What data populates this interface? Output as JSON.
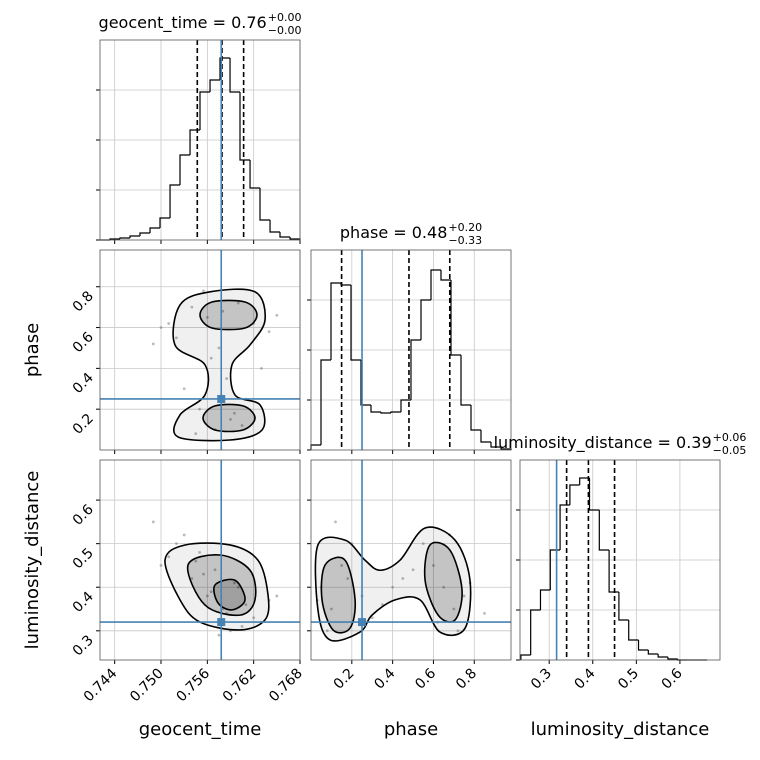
{
  "chart_data": [
    {
      "type": "histogram",
      "title": "geocent_time = 0.76",
      "title_sup": "+0.00",
      "title_sub": "−0.00",
      "bins": [
        0.7421,
        0.7434,
        0.74469,
        0.74599,
        0.74728,
        0.74858,
        0.74987,
        0.75117,
        0.75246,
        0.75376,
        0.75505,
        0.75635,
        0.75764,
        0.75894,
        0.76023,
        0.76153,
        0.76282,
        0.76412,
        0.76541,
        0.76671,
        0.768
      ],
      "values": [
        0,
        1,
        2,
        4,
        7,
        12,
        22,
        55,
        85,
        110,
        148,
        160,
        182,
        148,
        80,
        52,
        20,
        8,
        3,
        1
      ],
      "quantiles": [
        0.7547,
        0.7579,
        0.7607
      ],
      "truth": 0.7578,
      "xlim": [
        0.7421,
        0.768
      ],
      "xticks": [
        0.744,
        {
          "value": 0.75,
          "label": "0.750"
        },
        0.756,
        0.762,
        0.768
      ],
      "ylim": [
        0,
        200
      ],
      "yticks": [
        0,
        50,
        100,
        150
      ],
      "color": "#000000",
      "truth_color": "#4682b4",
      "grid": true
    },
    {
      "type": "scatter",
      "ylabel": "phase",
      "x": [
        0.75,
        0.752,
        0.754,
        0.756,
        0.758,
        0.76,
        0.762,
        0.764,
        0.755,
        0.759,
        0.761,
        0.757,
        0.753,
        0.749,
        0.763,
        0.7565,
        0.7585,
        0.7595,
        0.7545,
        0.751,
        0.765,
        0.7555,
        0.7605,
        0.7575
      ],
      "y": [
        0.6,
        0.55,
        0.7,
        0.65,
        0.68,
        0.72,
        0.62,
        0.58,
        0.2,
        0.15,
        0.25,
        0.1,
        0.3,
        0.52,
        0.4,
        0.45,
        0.35,
        0.18,
        0.08,
        0.62,
        0.66,
        0.78,
        0.12,
        0.5
      ],
      "contours": [
        {
          "x": [
            0.75181,
            0.75246,
            0.75635,
            0.76217,
            0.76347,
            0.76153,
            0.75919,
            0.75958,
            0.76282,
            0.76308,
            0.75893,
            0.7522,
            0.75246,
            0.7557,
            0.7557
          ],
          "y": [
            0.515,
            0.711,
            0.775,
            0.775,
            0.637,
            0.515,
            0.417,
            0.27,
            0.221,
            0.098,
            0.049,
            0.064,
            0.172,
            0.27,
            0.417
          ]
        },
        {
          "x": [
            0.75505,
            0.7566,
            0.76088,
            0.76243,
            0.76088,
            0.7566
          ],
          "y": [
            0.662,
            0.725,
            0.725,
            0.662,
            0.598,
            0.598
          ]
        },
        {
          "x": [
            0.75544,
            0.75699,
            0.76062,
            0.76217,
            0.76062,
            0.75699
          ],
          "y": [
            0.157,
            0.216,
            0.216,
            0.157,
            0.098,
            0.098
          ]
        }
      ],
      "truth_x": 0.7578,
      "truth_y": 0.25,
      "xlim": [
        0.7421,
        0.768
      ],
      "xticks": [
        0.744,
        {
          "value": 0.75,
          "label": "0.750"
        },
        0.756,
        0.762,
        0.768
      ],
      "ylim": [
        0,
        0.98
      ],
      "yticks": [
        0.2,
        0.4,
        0.6,
        0.8
      ],
      "color": "#000000",
      "truth_color": "#4682b4",
      "grid": true
    },
    {
      "type": "histogram",
      "title": "phase = 0.48",
      "title_sup": "+0.20",
      "title_sub": "−0.33",
      "bins": [
        0,
        0.049,
        0.098,
        0.147,
        0.196,
        0.245,
        0.294,
        0.343,
        0.392,
        0.441,
        0.49,
        0.539,
        0.588,
        0.637,
        0.686,
        0.735,
        0.784,
        0.833,
        0.882,
        0.931,
        0.98
      ],
      "values": [
        5,
        90,
        167,
        165,
        90,
        45,
        38,
        37,
        38,
        50,
        110,
        150,
        180,
        170,
        95,
        45,
        20,
        8,
        3,
        1
      ],
      "quantiles": [
        0.15,
        0.48,
        0.68
      ],
      "truth": 0.25,
      "xlim": [
        0,
        0.98
      ],
      "xticks": [
        0.2,
        0.4,
        0.6,
        0.8
      ],
      "ylim": [
        0,
        200
      ],
      "yticks": [
        0,
        50,
        100,
        150
      ],
      "color": "#000000",
      "truth_color": "#4682b4",
      "grid": true
    },
    {
      "type": "scatter",
      "xlabel": "geocent_time",
      "ylabel": "luminosity_distance",
      "x": [
        0.75,
        0.752,
        0.754,
        0.756,
        0.758,
        0.76,
        0.762,
        0.764,
        0.755,
        0.759,
        0.761,
        0.757,
        0.753,
        0.749,
        0.763,
        0.7565,
        0.7585,
        0.7595,
        0.7545,
        0.751,
        0.765,
        0.7555,
        0.7605,
        0.7575
      ],
      "y": [
        0.45,
        0.5,
        0.42,
        0.38,
        0.35,
        0.4,
        0.33,
        0.37,
        0.48,
        0.3,
        0.36,
        0.44,
        0.52,
        0.55,
        0.32,
        0.39,
        0.34,
        0.41,
        0.46,
        0.47,
        0.38,
        0.43,
        0.31,
        0.29
      ],
      "contours": [
        {
          "x": [
            0.75052,
            0.75311,
            0.75894,
            0.76256,
            0.76386,
            0.76347,
            0.76023,
            0.75505,
            0.75246
          ],
          "y": [
            0.462,
            0.497,
            0.497,
            0.462,
            0.382,
            0.325,
            0.302,
            0.32,
            0.371
          ]
        },
        {
          "x": [
            0.7535,
            0.75764,
            0.76153,
            0.76217,
            0.76023,
            0.7557
          ],
          "y": [
            0.451,
            0.474,
            0.439,
            0.371,
            0.336,
            0.359
          ]
        },
        {
          "x": [
            0.75699,
            0.75958,
            0.76088,
            0.75919,
            0.75738
          ],
          "y": [
            0.405,
            0.416,
            0.371,
            0.348,
            0.364
          ]
        }
      ],
      "truth_x": 0.7578,
      "truth_y": 0.32,
      "xlim": [
        0.7421,
        0.768
      ],
      "xticks": [
        0.744,
        {
          "value": 0.75,
          "label": "0.750"
        },
        0.756,
        0.762,
        0.768
      ],
      "ylim": [
        0.233,
        0.692
      ],
      "yticks": [
        0.3,
        0.4,
        0.5,
        0.6
      ],
      "color": "#000000",
      "truth_color": "#4682b4",
      "grid": true
    },
    {
      "type": "scatter",
      "xlabel": "phase",
      "x": [
        0.05,
        0.1,
        0.15,
        0.2,
        0.25,
        0.3,
        0.08,
        0.12,
        0.18,
        0.6,
        0.65,
        0.7,
        0.75,
        0.55,
        0.68,
        0.72,
        0.4,
        0.45,
        0.35,
        0.5,
        0.62,
        0.78,
        0.03,
        0.85
      ],
      "y": [
        0.4,
        0.35,
        0.45,
        0.5,
        0.38,
        0.33,
        0.3,
        0.55,
        0.42,
        0.45,
        0.4,
        0.35,
        0.38,
        0.5,
        0.52,
        0.3,
        0.4,
        0.42,
        0.36,
        0.44,
        0.32,
        0.41,
        0.37,
        0.34
      ],
      "contours": [
        {
          "x": [
            0.034,
            0.167,
            0.265,
            0.338,
            0.436,
            0.559,
            0.706,
            0.779,
            0.755,
            0.632,
            0.534,
            0.412,
            0.299,
            0.24,
            0.093,
            0.034
          ],
          "y": [
            0.497,
            0.508,
            0.462,
            0.439,
            0.462,
            0.536,
            0.508,
            0.416,
            0.306,
            0.297,
            0.371,
            0.371,
            0.336,
            0.297,
            0.279,
            0.348
          ]
        },
        {
          "x": [
            0.069,
            0.167,
            0.216,
            0.191,
            0.108,
            0.054
          ],
          "y": [
            0.451,
            0.462,
            0.371,
            0.306,
            0.302,
            0.371
          ]
        },
        {
          "x": [
            0.583,
            0.681,
            0.74,
            0.706,
            0.623,
            0.559
          ],
          "y": [
            0.497,
            0.485,
            0.394,
            0.325,
            0.336,
            0.416
          ]
        }
      ],
      "truth_x": 0.25,
      "truth_y": 0.32,
      "xlim": [
        0,
        0.98
      ],
      "xticks": [
        0.2,
        0.4,
        0.6,
        0.8
      ],
      "ylim": [
        0.233,
        0.692
      ],
      "yticks": [
        0.3,
        0.4,
        0.5,
        0.6
      ],
      "color": "#000000",
      "truth_color": "#4682b4",
      "grid": true
    },
    {
      "type": "histogram",
      "xlabel": "luminosity_distance",
      "title": "luminosity_distance = 0.39",
      "title_sup": "+0.06",
      "title_sub": "−0.05",
      "bins": [
        0.235,
        0.2575,
        0.28,
        0.3025,
        0.325,
        0.3475,
        0.37,
        0.3925,
        0.415,
        0.4375,
        0.46,
        0.4825,
        0.505,
        0.5275,
        0.55,
        0.5725,
        0.595,
        0.6175,
        0.64,
        0.6625
      ],
      "values": [
        5,
        50,
        70,
        110,
        155,
        175,
        182,
        150,
        110,
        68,
        40,
        20,
        10,
        6,
        3,
        1,
        0,
        0,
        0
      ],
      "quantiles": [
        0.34,
        0.39,
        0.45
      ],
      "truth": 0.317,
      "xlim": [
        0.233,
        0.692
      ],
      "xticks": [
        0.3,
        0.4,
        0.5,
        0.6
      ],
      "ylim": [
        0,
        200
      ],
      "yticks": [
        0,
        50,
        100,
        150
      ],
      "color": "#000000",
      "truth_color": "#4682b4",
      "grid": true
    }
  ]
}
